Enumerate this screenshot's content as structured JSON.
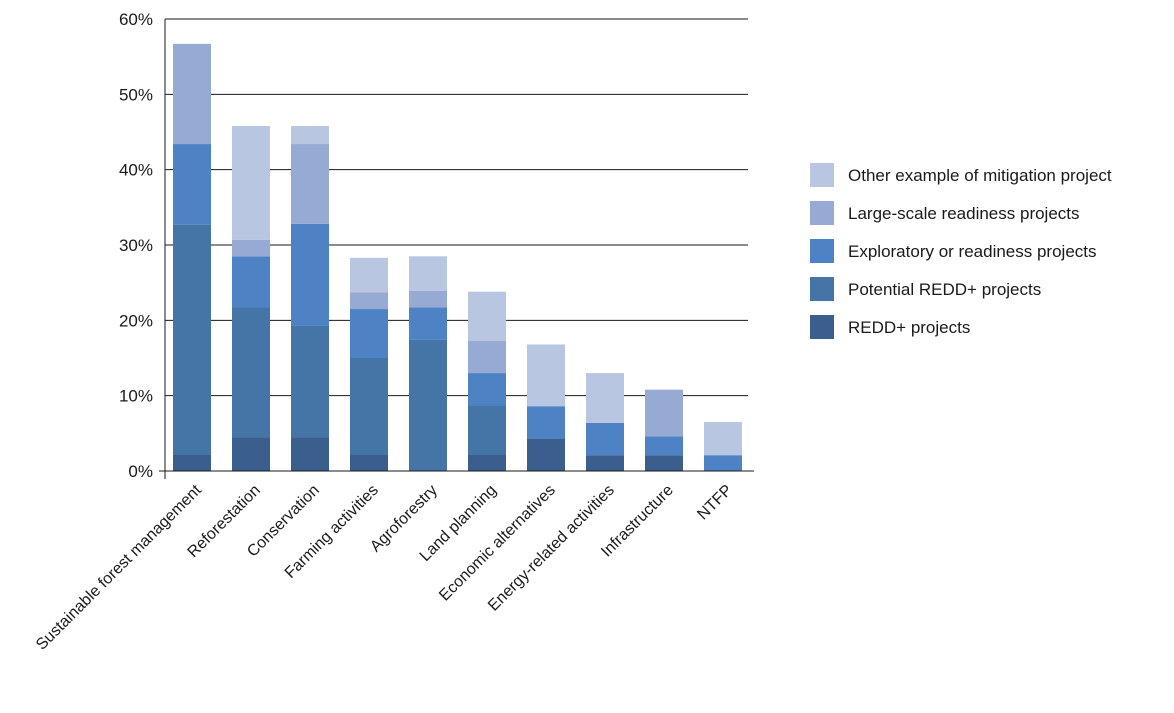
{
  "chart_data": {
    "type": "bar",
    "stacked": true,
    "categories": [
      "Sustainable forest management",
      "Reforestation",
      "Conservation",
      "Farming activities",
      "Agroforestry",
      "Land planning",
      "Economic alternatives",
      "Energy-related activities",
      "Infrastructure",
      "NTFP"
    ],
    "series": [
      {
        "name": "REDD+ projects",
        "color": "#3a5f8f",
        "values": [
          2.2,
          4.5,
          4.5,
          2.2,
          0,
          2.2,
          4.3,
          2.1,
          2.1,
          0
        ]
      },
      {
        "name": "Potential REDD+ projects",
        "color": "#4574a6",
        "values": [
          30.5,
          17.2,
          14.8,
          12.8,
          17.4,
          6.5,
          0,
          0,
          0,
          0
        ]
      },
      {
        "name": "Exploratory or readiness projects",
        "color": "#4d83c4",
        "values": [
          10.7,
          6.8,
          13.5,
          6.5,
          4.3,
          4.3,
          4.3,
          4.3,
          2.5,
          2.1
        ]
      },
      {
        "name": "Large-scale readiness projects",
        "color": "#97aad4",
        "values": [
          13.3,
          2.2,
          10.6,
          2.2,
          2.2,
          4.3,
          0,
          0,
          6.2,
          0
        ]
      },
      {
        "name": "Other example of mitigation project",
        "color": "#b9c6e2",
        "values": [
          0,
          15.1,
          2.4,
          4.6,
          4.6,
          6.5,
          8.2,
          6.6,
          0,
          4.4
        ]
      }
    ],
    "ylim": [
      0,
      60
    ],
    "yticks": [
      "0%",
      "10%",
      "20%",
      "30%",
      "40%",
      "50%",
      "60%"
    ],
    "grid": true,
    "legend_position": "right"
  }
}
